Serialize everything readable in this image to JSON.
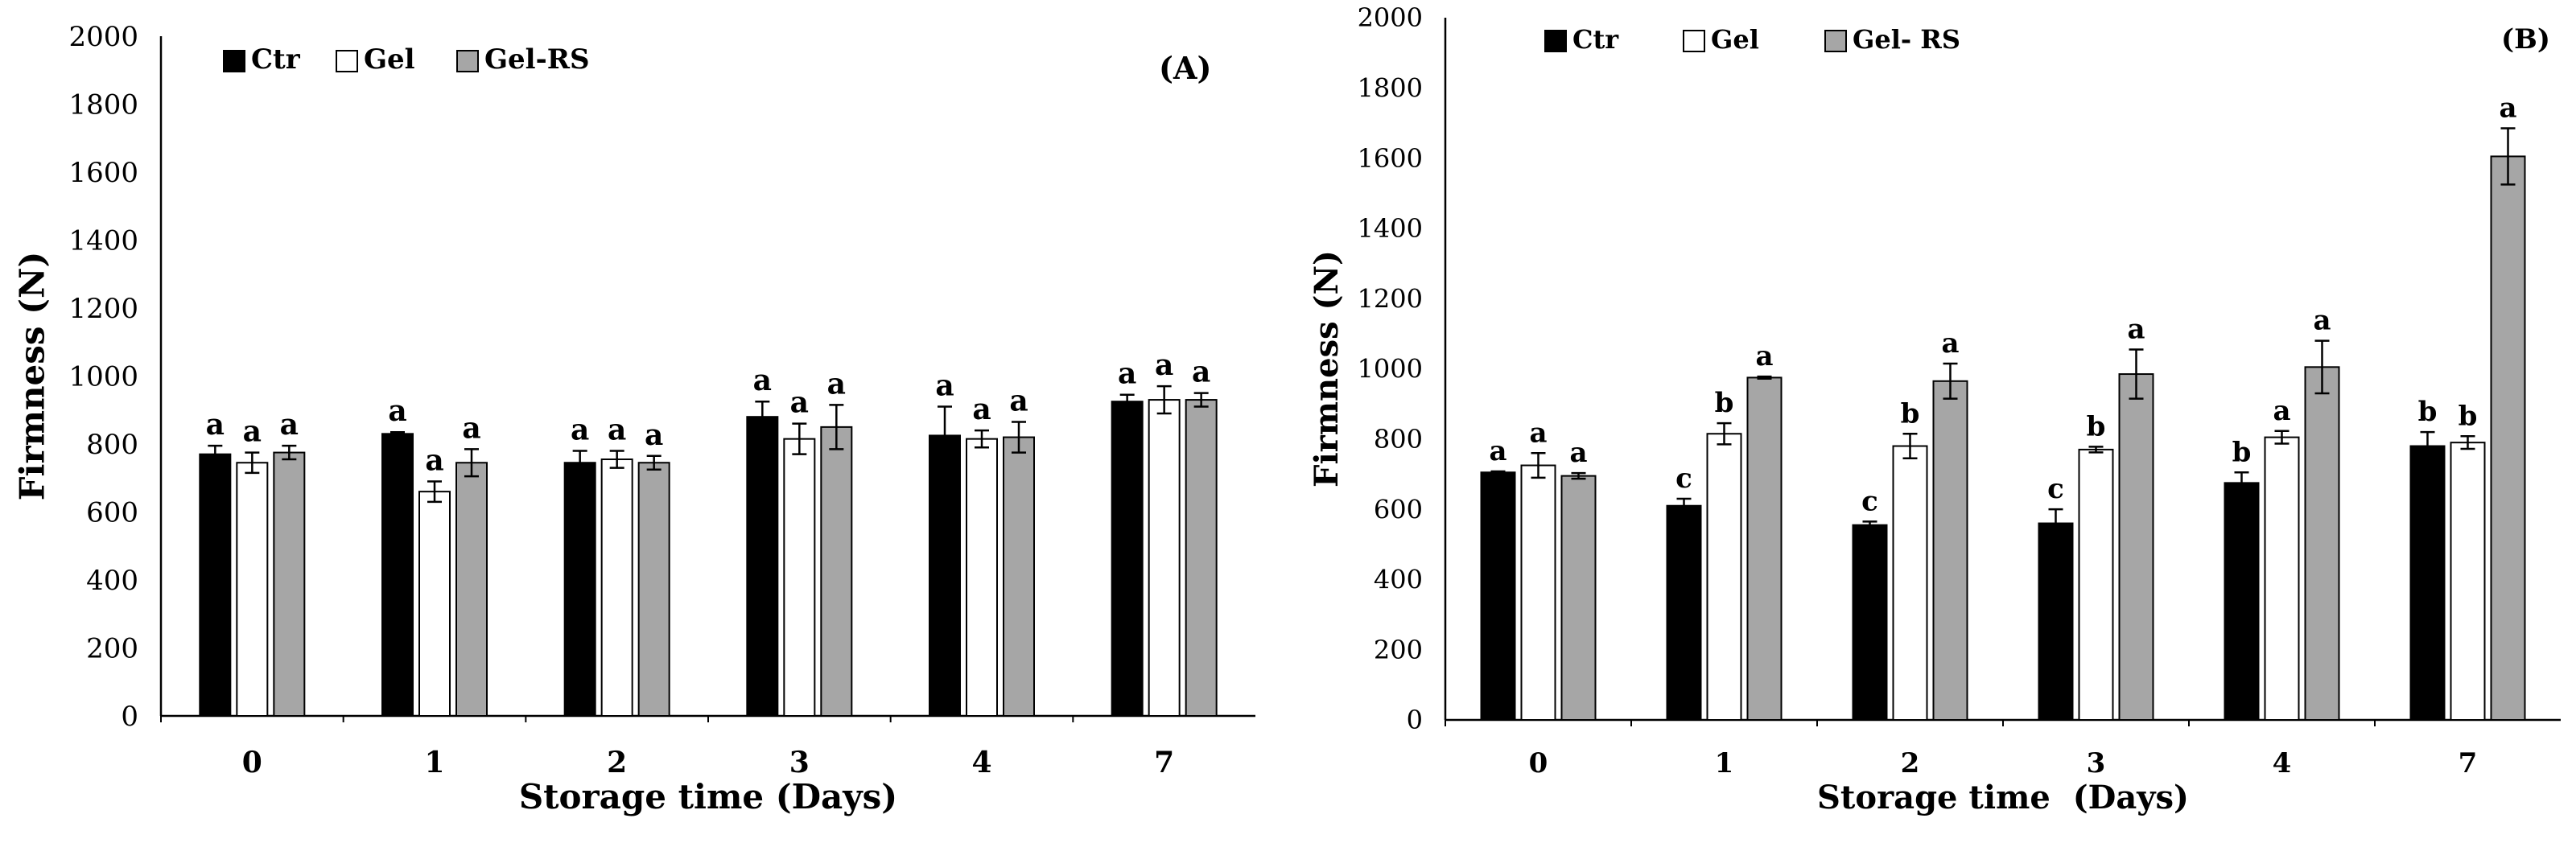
{
  "chart_data": [
    {
      "panel": "(A)",
      "type": "bar",
      "categories": [
        "0",
        "1",
        "2",
        "3",
        "4",
        "7"
      ],
      "xlabel": "Storage time (Days)",
      "ylabel": "Firmness (N)",
      "ylim": [
        0,
        2000
      ],
      "yticks": [
        "0",
        "200",
        "400",
        "600",
        "800",
        "1000",
        "1200",
        "1400",
        "1600",
        "1800",
        "2000"
      ],
      "legend_position": "top-left",
      "series": [
        {
          "name": "Ctr",
          "color": "#000000",
          "values": [
            770,
            830,
            745,
            880,
            825,
            925
          ],
          "errors": [
            25,
            5,
            35,
            45,
            85,
            20
          ],
          "letters": [
            "a",
            "a",
            "a",
            "a",
            "a",
            "a"
          ]
        },
        {
          "name": "Gel",
          "color": "#ffffff",
          "values": [
            745,
            660,
            755,
            815,
            815,
            930
          ],
          "errors": [
            30,
            30,
            25,
            45,
            25,
            40
          ],
          "letters": [
            "a",
            "a",
            "a",
            "a",
            "a",
            "a"
          ]
        },
        {
          "name": "Gel-RS",
          "color": "#a6a6a6",
          "values": [
            775,
            745,
            745,
            850,
            820,
            930
          ],
          "errors": [
            20,
            40,
            20,
            65,
            45,
            20
          ],
          "letters": [
            "a",
            "a",
            "a",
            "a",
            "a",
            "a"
          ]
        }
      ]
    },
    {
      "panel": "(B)",
      "type": "bar",
      "categories": [
        "0",
        "1",
        "2",
        "3",
        "4",
        "7"
      ],
      "xlabel": "Storage time  (Days)",
      "ylabel": "Firmness (N)",
      "ylim": [
        0,
        2000
      ],
      "yticks": [
        "0",
        "200",
        "400",
        "600",
        "800",
        "1000",
        "1200",
        "1400",
        "1600",
        "1800",
        "2000"
      ],
      "legend_position": "top-left",
      "series": [
        {
          "name": "Ctr",
          "color": "#000000",
          "values": [
            705,
            610,
            555,
            560,
            675,
            780
          ],
          "errors": [
            3,
            20,
            10,
            40,
            30,
            40
          ],
          "letters": [
            "a",
            "c",
            "c",
            "c",
            "b",
            "b"
          ]
        },
        {
          "name": "Gel",
          "color": "#ffffff",
          "values": [
            725,
            815,
            780,
            770,
            805,
            790
          ],
          "errors": [
            35,
            30,
            35,
            8,
            18,
            18
          ],
          "letters": [
            "a",
            "b",
            "b",
            "b",
            "a",
            "b"
          ]
        },
        {
          "name": "Gel- RS",
          "color": "#a6a6a6",
          "values": [
            695,
            975,
            965,
            985,
            1005,
            1605
          ],
          "errors": [
            8,
            3,
            50,
            70,
            75,
            80
          ],
          "letters": [
            "a",
            "a",
            "a",
            "a",
            "a",
            "a"
          ]
        }
      ]
    }
  ]
}
